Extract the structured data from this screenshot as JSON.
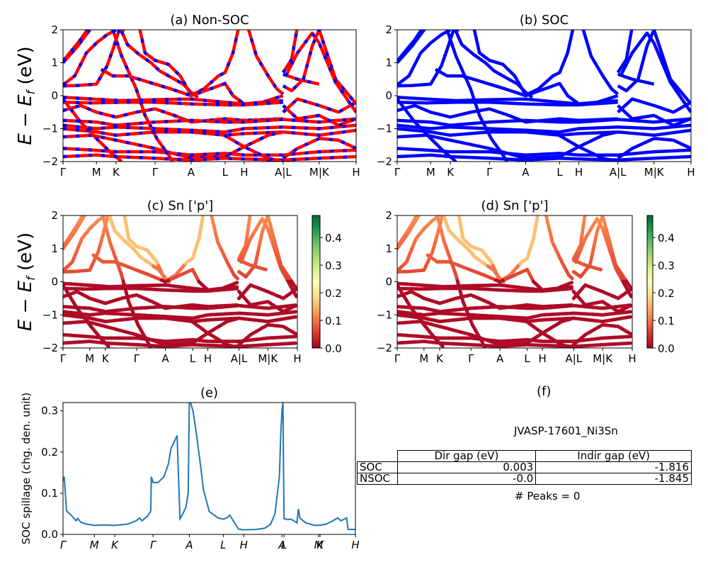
{
  "figure": {
    "material_label": "JVASP-17601_Ni3Sn",
    "peaks_label": "# Peaks = 0"
  },
  "chart_data": [
    {
      "id": "a",
      "type": "line",
      "title": "(a) Non-SOC",
      "ylabel": "E − E_f (eV)",
      "ylim": [
        -2,
        2
      ],
      "yticks": [
        "−2",
        "−1",
        "0",
        "1",
        "2"
      ],
      "ytick_values": [
        -2,
        -1,
        0,
        1,
        2
      ],
      "kpath_labels": [
        "Γ",
        "M",
        "K",
        "Γ",
        "A",
        "L",
        "H",
        "A|L",
        "M|K",
        "H"
      ],
      "kpath_positions": [
        0,
        0.114,
        0.181,
        0.314,
        0.437,
        0.553,
        0.618,
        0.751,
        0.874,
        1.0
      ],
      "style": "dashed red/blue",
      "colors": [
        "#ff0000",
        "#0000ff"
      ]
    },
    {
      "id": "b",
      "type": "line",
      "title": "(b) SOC",
      "ylabel": "",
      "ylim": [
        -2,
        2
      ],
      "yticks": [
        "−2",
        "−1",
        "0",
        "1",
        "2"
      ],
      "ytick_values": [
        -2,
        -1,
        0,
        1,
        2
      ],
      "kpath_labels": [
        "Γ",
        "M",
        "K",
        "Γ",
        "A",
        "L",
        "H",
        "A|L",
        "M|K",
        "H"
      ],
      "kpath_positions": [
        0,
        0.114,
        0.181,
        0.314,
        0.437,
        0.553,
        0.618,
        0.751,
        0.874,
        1.0
      ],
      "colors": [
        "#0000ff"
      ]
    },
    {
      "id": "c",
      "type": "scatter",
      "title": "(c)  Sn ['p']",
      "ylabel": "E − E_f (eV)",
      "ylim": [
        -2,
        2
      ],
      "yticks": [
        "−2",
        "−1",
        "0",
        "1",
        "2"
      ],
      "ytick_values": [
        -2,
        -1,
        0,
        1,
        2
      ],
      "kpath_labels": [
        "Γ",
        "M",
        "K",
        "Γ",
        "A",
        "L",
        "H",
        "A|L",
        "M|K",
        "H"
      ],
      "kpath_positions": [
        0,
        0.114,
        0.181,
        0.314,
        0.437,
        0.553,
        0.618,
        0.751,
        0.874,
        1.0
      ],
      "colorbar": {
        "cmap": "RdYlGn",
        "range": [
          0,
          0.48
        ],
        "ticks": [
          "0.0",
          "0.1",
          "0.2",
          "0.3",
          "0.4"
        ],
        "tick_values": [
          0,
          0.1,
          0.2,
          0.3,
          0.4
        ]
      }
    },
    {
      "id": "d",
      "type": "scatter",
      "title": "(d) Sn ['p']",
      "ylabel": "",
      "ylim": [
        -2,
        2
      ],
      "yticks": [
        "−2",
        "−1",
        "0",
        "1",
        "2"
      ],
      "ytick_values": [
        -2,
        -1,
        0,
        1,
        2
      ],
      "kpath_labels": [
        "Γ",
        "M",
        "K",
        "Γ",
        "A",
        "L",
        "H",
        "A|L",
        "M|K",
        "H"
      ],
      "kpath_positions": [
        0,
        0.114,
        0.181,
        0.314,
        0.437,
        0.553,
        0.618,
        0.751,
        0.874,
        1.0
      ],
      "colorbar": {
        "cmap": "RdYlGn",
        "range": [
          0,
          0.48
        ],
        "ticks": [
          "0.0",
          "0.1",
          "0.2",
          "0.3",
          "0.4"
        ],
        "tick_values": [
          0,
          0.1,
          0.2,
          0.3,
          0.4
        ]
      }
    },
    {
      "id": "e",
      "type": "line",
      "title": "(e)",
      "ylabel": "SOC spillage (chg. den. unit)",
      "ylim": [
        0,
        0.32
      ],
      "yticks": [
        "0.0",
        "0.1",
        "0.2",
        "0.3"
      ],
      "ytick_values": [
        0,
        0.1,
        0.2,
        0.3
      ],
      "kpath_labels": [
        "Γ",
        "M",
        "K",
        "Γ",
        "A",
        "L",
        "H",
        "A",
        "L",
        "M",
        "K",
        "H"
      ],
      "kpath_positions": [
        0,
        0.107,
        0.177,
        0.308,
        0.432,
        0.548,
        0.618,
        0.749,
        0.756,
        0.874,
        0.879,
        1.0
      ],
      "color": "#1f77b4",
      "x": [
        0,
        0.004,
        0.012,
        0.03,
        0.045,
        0.05,
        0.06,
        0.08,
        0.107,
        0.14,
        0.177,
        0.22,
        0.25,
        0.262,
        0.27,
        0.29,
        0.3,
        0.302,
        0.308,
        0.325,
        0.345,
        0.36,
        0.37,
        0.375,
        0.39,
        0.4,
        0.41,
        0.42,
        0.428,
        0.432,
        0.436,
        0.445,
        0.455,
        0.47,
        0.48,
        0.5,
        0.53,
        0.548,
        0.56,
        0.57,
        0.6,
        0.618,
        0.66,
        0.69,
        0.71,
        0.725,
        0.74,
        0.745,
        0.749,
        0.752,
        0.756,
        0.77,
        0.78,
        0.8,
        0.805,
        0.81,
        0.83,
        0.86,
        0.874,
        0.9,
        0.92,
        0.94,
        0.95,
        0.97,
        0.975,
        1.0
      ],
      "y": [
        0.13,
        0.14,
        0.057,
        0.045,
        0.033,
        0.039,
        0.03,
        0.025,
        0.022,
        0.023,
        0.022,
        0.025,
        0.033,
        0.04,
        0.033,
        0.045,
        0.057,
        0.14,
        0.126,
        0.126,
        0.14,
        0.17,
        0.21,
        0.217,
        0.24,
        0.038,
        0.05,
        0.065,
        0.1,
        0.32,
        0.32,
        0.298,
        0.25,
        0.17,
        0.11,
        0.056,
        0.04,
        0.037,
        0.04,
        0.047,
        0.013,
        0.011,
        0.012,
        0.015,
        0.025,
        0.05,
        0.14,
        0.25,
        0.3,
        0.32,
        0.038,
        0.036,
        0.037,
        0.028,
        0.062,
        0.04,
        0.028,
        0.022,
        0.022,
        0.025,
        0.032,
        0.04,
        0.033,
        0.04,
        0.012,
        0.012
      ]
    },
    {
      "id": "f",
      "type": "table",
      "title": "(f)",
      "columns": [
        "",
        "Dir gap (eV)",
        "Indir gap (eV)"
      ],
      "rows": [
        {
          "label": "SOC",
          "dir_gap": "0.003",
          "indir_gap": "-1.816"
        },
        {
          "label": "NSOC",
          "dir_gap": "-0.0",
          "indir_gap": "-1.845"
        }
      ]
    }
  ],
  "bands": [
    [
      [
        0,
        1.0
      ],
      [
        0.05,
        1.5
      ],
      [
        0.1,
        2.1
      ]
    ],
    [
      [
        0,
        1.05
      ],
      [
        0.06,
        1.7
      ],
      [
        0.09,
        2.1
      ]
    ],
    [
      [
        0,
        0.3
      ],
      [
        0.05,
        0.31
      ],
      [
        0.114,
        0.35
      ],
      [
        0.15,
        0.9
      ],
      [
        0.17,
        1.4
      ],
      [
        0.19,
        1.95
      ],
      [
        0.21,
        2.0
      ]
    ],
    [
      [
        0,
        0.33
      ],
      [
        0.04,
        0.6
      ],
      [
        0.08,
        1.3
      ],
      [
        0.114,
        1.6
      ],
      [
        0.15,
        1.85
      ],
      [
        0.181,
        2.0
      ]
    ],
    [
      [
        0.2,
        1.95
      ],
      [
        0.22,
        1.55
      ],
      [
        0.26,
        1.25
      ],
      [
        0.3,
        1.0
      ],
      [
        0.33,
        0.75
      ],
      [
        0.37,
        0.55
      ],
      [
        0.41,
        0.35
      ],
      [
        0.437,
        0.1
      ],
      [
        0.46,
        -0.05
      ]
    ],
    [
      [
        0.26,
        2.1
      ],
      [
        0.28,
        1.3
      ],
      [
        0.314,
        1.07
      ],
      [
        0.36,
        0.95
      ],
      [
        0.4,
        0.6
      ],
      [
        0.437,
        0.02
      ],
      [
        0.48,
        0.2
      ],
      [
        0.53,
        0.6
      ],
      [
        0.553,
        0.7
      ],
      [
        0.58,
        1.3
      ],
      [
        0.6,
        2.1
      ]
    ],
    [
      [
        0.63,
        2.1
      ],
      [
        0.66,
        1.2
      ],
      [
        0.7,
        0.6
      ],
      [
        0.73,
        0.2
      ],
      [
        0.751,
        0.05
      ]
    ],
    [
      [
        0.17,
        2.0
      ],
      [
        0.2,
        1.2
      ],
      [
        0.25,
        0.2
      ],
      [
        0.28,
        -0.6
      ],
      [
        0.32,
        -1.3
      ],
      [
        0.36,
        -1.8
      ],
      [
        0.38,
        -2.1
      ]
    ],
    [
      [
        0.13,
        0.8
      ],
      [
        0.17,
        0.6
      ],
      [
        0.22,
        0.6
      ],
      [
        0.26,
        0.5
      ],
      [
        0.314,
        0.35
      ],
      [
        0.37,
        0.2
      ],
      [
        0.437,
        0.0
      ],
      [
        0.5,
        0.2
      ],
      [
        0.553,
        0.37
      ],
      [
        0.58,
        0.0
      ],
      [
        0.618,
        -0.25
      ],
      [
        0.68,
        -0.2
      ],
      [
        0.751,
        0.0
      ]
    ],
    [
      [
        0,
        -0.05
      ],
      [
        0.1,
        -0.1
      ],
      [
        0.2,
        -0.15
      ],
      [
        0.314,
        -0.12
      ],
      [
        0.437,
        -0.1
      ],
      [
        0.553,
        -0.2
      ],
      [
        0.618,
        -0.25
      ],
      [
        0.751,
        -0.15
      ]
    ],
    [
      [
        0,
        -0.2
      ],
      [
        0.1,
        -0.22
      ],
      [
        0.2,
        -0.2
      ],
      [
        0.314,
        -0.2
      ],
      [
        0.437,
        -0.25
      ],
      [
        0.553,
        -0.28
      ],
      [
        0.618,
        -0.28
      ],
      [
        0.751,
        -0.2
      ]
    ],
    [
      [
        0,
        -0.45
      ],
      [
        0.06,
        -0.3
      ],
      [
        0.114,
        -0.5
      ],
      [
        0.181,
        -0.65
      ],
      [
        0.25,
        -0.5
      ],
      [
        0.314,
        -0.4
      ],
      [
        0.38,
        -0.6
      ],
      [
        0.437,
        -0.8
      ],
      [
        0.553,
        -0.7
      ],
      [
        0.618,
        -0.75
      ],
      [
        0.751,
        -0.7
      ]
    ],
    [
      [
        0,
        -0.75
      ],
      [
        0.114,
        -0.8
      ],
      [
        0.181,
        -0.9
      ],
      [
        0.314,
        -0.8
      ],
      [
        0.437,
        -0.75
      ],
      [
        0.553,
        -0.8
      ],
      [
        0.618,
        -0.8
      ],
      [
        0.751,
        -0.72
      ],
      [
        0.874,
        -0.8
      ],
      [
        1.0,
        -0.7
      ]
    ],
    [
      [
        0,
        -0.9
      ],
      [
        0.114,
        -1.0
      ],
      [
        0.181,
        -0.95
      ],
      [
        0.314,
        -1.0
      ],
      [
        0.437,
        -1.05
      ],
      [
        0.553,
        -1.1
      ],
      [
        0.618,
        -1.0
      ],
      [
        0.751,
        -0.95
      ],
      [
        0.874,
        -1.0
      ],
      [
        1.0,
        -0.9
      ]
    ],
    [
      [
        0,
        -1.0
      ],
      [
        0.114,
        -1.1
      ],
      [
        0.181,
        -1.2
      ],
      [
        0.314,
        -1.1
      ],
      [
        0.437,
        -1.1
      ],
      [
        0.553,
        -1.2
      ],
      [
        0.618,
        -1.15
      ],
      [
        0.751,
        -1.1
      ],
      [
        0.874,
        -1.2
      ],
      [
        1.0,
        -1.05
      ]
    ],
    [
      [
        0,
        -1.25
      ],
      [
        0.1,
        -1.2
      ],
      [
        0.181,
        -1.35
      ],
      [
        0.314,
        -1.6
      ],
      [
        0.437,
        -1.9
      ],
      [
        0.553,
        -1.85
      ],
      [
        0.618,
        -1.55
      ],
      [
        0.7,
        -1.2
      ],
      [
        0.751,
        -1.1
      ]
    ],
    [
      [
        0.751,
        -1.9
      ],
      [
        0.8,
        -1.6
      ],
      [
        0.874,
        -1.3
      ],
      [
        0.94,
        -1.35
      ],
      [
        1.0,
        -1.6
      ]
    ],
    [
      [
        0,
        -1.6
      ],
      [
        0.1,
        -1.65
      ],
      [
        0.181,
        -1.7
      ],
      [
        0.314,
        -1.7
      ],
      [
        0.437,
        -1.8
      ],
      [
        0.553,
        -1.75
      ],
      [
        0.618,
        -1.8
      ],
      [
        0.751,
        -1.8
      ],
      [
        0.874,
        -1.7
      ],
      [
        1.0,
        -1.65
      ]
    ],
    [
      [
        0,
        -1.85
      ],
      [
        0.114,
        -1.8
      ],
      [
        0.181,
        -1.85
      ],
      [
        0.314,
        -1.9
      ],
      [
        0.437,
        -1.95
      ],
      [
        0.553,
        -1.9
      ],
      [
        0.618,
        -1.92
      ],
      [
        0.751,
        -1.95
      ],
      [
        0.874,
        -1.9
      ],
      [
        1.0,
        -1.85
      ]
    ],
    [
      [
        0.751,
        0.65
      ],
      [
        0.8,
        0.5
      ],
      [
        0.874,
        0.35
      ]
    ],
    [
      [
        0.751,
        0.3
      ],
      [
        0.78,
        0.15
      ],
      [
        0.82,
        0.5
      ],
      [
        0.85,
        1.5
      ],
      [
        0.874,
        2.0
      ],
      [
        0.93,
        0.5
      ],
      [
        1.0,
        -0.25
      ]
    ],
    [
      [
        0.751,
        0.7
      ],
      [
        0.78,
        1.1
      ],
      [
        0.8,
        2.1
      ]
    ],
    [
      [
        0.76,
        0.6
      ],
      [
        0.8,
        1.3
      ],
      [
        0.85,
        1.9
      ],
      [
        0.874,
        1.6
      ],
      [
        0.93,
        0.4
      ],
      [
        1.0,
        -0.5
      ]
    ],
    [
      [
        0.751,
        -0.5
      ],
      [
        0.8,
        -0.1
      ],
      [
        0.874,
        -0.3
      ],
      [
        0.94,
        -0.5
      ],
      [
        1.0,
        -0.2
      ]
    ],
    [
      [
        0.751,
        -0.3
      ],
      [
        0.8,
        -0.7
      ],
      [
        0.874,
        -0.6
      ],
      [
        0.94,
        -0.9
      ],
      [
        1.0,
        -0.7
      ]
    ],
    [
      [
        0.55,
        -1.2
      ],
      [
        0.618,
        -1.55
      ],
      [
        0.7,
        -1.9
      ],
      [
        0.751,
        -2.0
      ]
    ],
    [
      [
        0,
        -0.1
      ],
      [
        0.06,
        -0.8
      ],
      [
        0.114,
        -1.3
      ],
      [
        0.16,
        -1.7
      ],
      [
        0.2,
        -2.0
      ]
    ]
  ]
}
